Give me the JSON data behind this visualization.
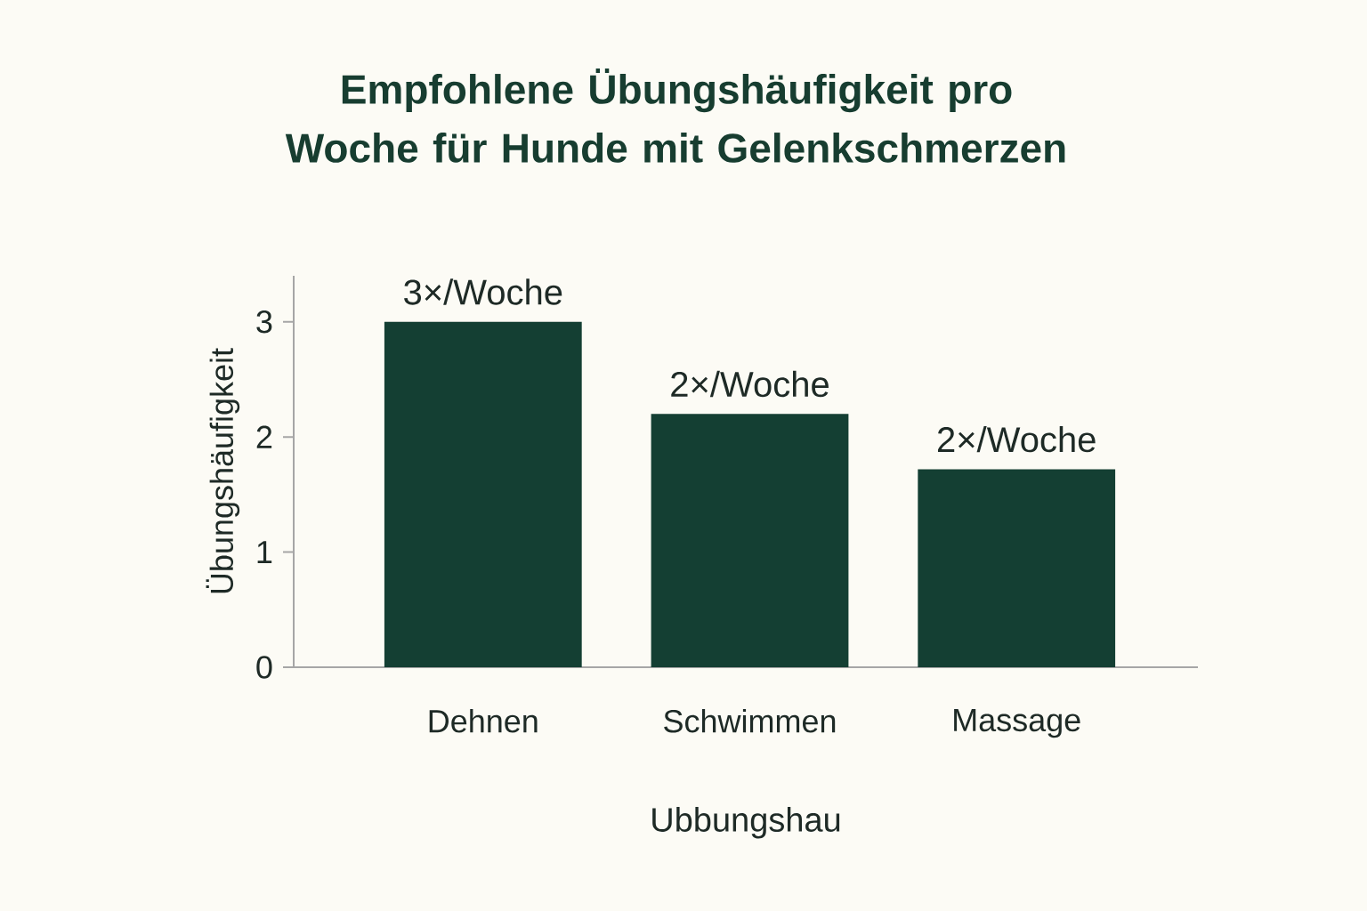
{
  "chart_data": {
    "type": "bar",
    "title": "Empfohlene Übungshäufigkeit pro Woche für Hunde mit Gelenkschmerzen",
    "xlabel": "Ubbungshau",
    "ylabel": "Übungshäufigkeit",
    "categories": [
      "Dehnen",
      "Schwimmen",
      "Massage"
    ],
    "values": [
      3,
      2.2,
      1.72
    ],
    "value_labels": [
      "3×/Woche",
      "2×/Woche",
      "2×/Woche"
    ],
    "color": "#143f33",
    "ylim": [
      0,
      3.4
    ],
    "yticks": [
      0,
      1,
      2,
      3
    ],
    "grid": false
  }
}
